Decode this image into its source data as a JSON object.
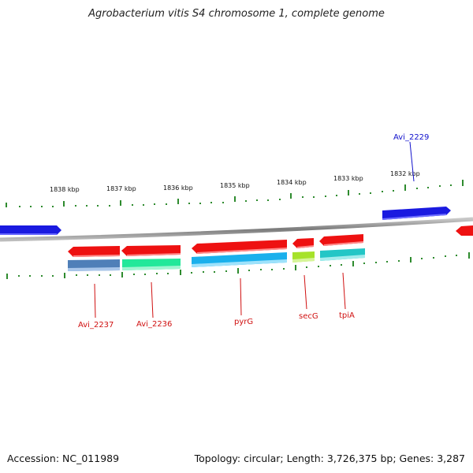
{
  "title": "Agrobacterium vitis S4 chromosome 1, complete genome",
  "footer": {
    "accession": "Accession: NC_011989",
    "summary": "Topology: circular; Length: 3,726,375 bp; Genes: 3,287"
  },
  "colors": {
    "backbone": "#8c8c8c",
    "tick": "#2e8b2e",
    "red_cds": "#ee1111",
    "blue_cds": "#1111dd",
    "label_red": "#d01010",
    "label_blue": "#1010cc",
    "steelblue_feature": "#4f7fb8",
    "green_feature": "#22e89a",
    "skyblue_feature": "#1ab0ec",
    "lime_feature": "#a6e22a",
    "teal_feature": "#23c6c6"
  },
  "scale_labels": [
    "1838 kbp",
    "1837 kbp",
    "1836 kbp",
    "1835 kbp",
    "1834 kbp",
    "1833 kbp",
    "1832 kbp"
  ],
  "genes": [
    {
      "name": "Avi_2237",
      "color": "red"
    },
    {
      "name": "Avi_2236",
      "color": "red"
    },
    {
      "name": "pyrG",
      "color": "red"
    },
    {
      "name": "secG",
      "color": "red"
    },
    {
      "name": "tpiA",
      "color": "red"
    },
    {
      "name": "Avi_2229",
      "color": "blue"
    }
  ]
}
